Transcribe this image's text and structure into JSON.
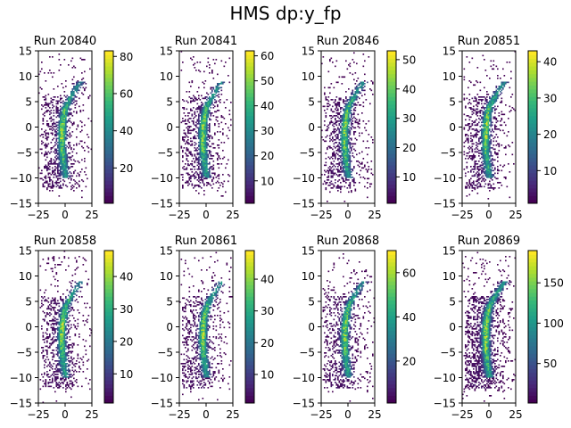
{
  "figure": {
    "title": "HMS dp:y_fp"
  },
  "chart_data": [
    {
      "type": "heatmap",
      "title": "Run 20840",
      "xlim": [
        -25,
        25
      ],
      "ylim": [
        -15,
        15
      ],
      "xticks": [
        -25,
        0,
        25
      ],
      "yticks": [
        -15,
        -10,
        -5,
        0,
        5,
        10,
        15
      ],
      "colorbar": {
        "range": [
          1,
          83
        ],
        "ticks": [
          20,
          40,
          60,
          80
        ]
      }
    },
    {
      "type": "heatmap",
      "title": "Run 20841",
      "xlim": [
        -25,
        25
      ],
      "ylim": [
        -15,
        15
      ],
      "xticks": [
        -25,
        0,
        25
      ],
      "yticks": [
        -15,
        -10,
        -5,
        0,
        5,
        10,
        15
      ],
      "colorbar": {
        "range": [
          1,
          62
        ],
        "ticks": [
          10,
          20,
          30,
          40,
          50,
          60
        ]
      }
    },
    {
      "type": "heatmap",
      "title": "Run 20846",
      "xlim": [
        -25,
        25
      ],
      "ylim": [
        -15,
        15
      ],
      "xticks": [
        -25,
        0,
        25
      ],
      "yticks": [
        -15,
        -10,
        -5,
        0,
        5,
        10,
        15
      ],
      "colorbar": {
        "range": [
          1,
          53
        ],
        "ticks": [
          10,
          20,
          30,
          40,
          50
        ]
      }
    },
    {
      "type": "heatmap",
      "title": "Run 20851",
      "xlim": [
        -25,
        25
      ],
      "ylim": [
        -15,
        15
      ],
      "xticks": [
        -25,
        0,
        25
      ],
      "yticks": [
        -15,
        -10,
        -5,
        0,
        5,
        10,
        15
      ],
      "colorbar": {
        "range": [
          1,
          43
        ],
        "ticks": [
          10,
          20,
          30,
          40
        ]
      }
    },
    {
      "type": "heatmap",
      "title": "Run 20858",
      "xlim": [
        -25,
        25
      ],
      "ylim": [
        -15,
        15
      ],
      "xticks": [
        -25,
        0,
        25
      ],
      "yticks": [
        -15,
        -10,
        -5,
        0,
        5,
        10,
        15
      ],
      "colorbar": {
        "range": [
          1,
          48
        ],
        "ticks": [
          10,
          20,
          30,
          40
        ]
      }
    },
    {
      "type": "heatmap",
      "title": "Run 20861",
      "xlim": [
        -25,
        25
      ],
      "ylim": [
        -15,
        15
      ],
      "xticks": [
        -25,
        0,
        25
      ],
      "yticks": [
        -15,
        -10,
        -5,
        0,
        5,
        10,
        15
      ],
      "colorbar": {
        "range": [
          1,
          49
        ],
        "ticks": [
          10,
          20,
          30,
          40
        ]
      }
    },
    {
      "type": "heatmap",
      "title": "Run 20868",
      "xlim": [
        -25,
        25
      ],
      "ylim": [
        -15,
        15
      ],
      "xticks": [
        -25,
        0,
        25
      ],
      "yticks": [
        -15,
        -10,
        -5,
        0,
        5,
        10,
        15
      ],
      "colorbar": {
        "range": [
          1,
          70
        ],
        "ticks": [
          20,
          40,
          60
        ]
      }
    },
    {
      "type": "heatmap",
      "title": "Run 20869",
      "xlim": [
        -25,
        25
      ],
      "ylim": [
        -15,
        15
      ],
      "xticks": [
        -25,
        0,
        25
      ],
      "yticks": [
        -15,
        -10,
        -5,
        0,
        5,
        10,
        15
      ],
      "colorbar": {
        "range": [
          1,
          190
        ],
        "ticks": [
          50,
          100,
          150
        ]
      }
    }
  ],
  "colors": {
    "viridis": [
      "#440154",
      "#482878",
      "#3e4989",
      "#31688e",
      "#26828e",
      "#1f9e89",
      "#35b779",
      "#6ece58",
      "#b5de2b",
      "#fde725"
    ]
  }
}
